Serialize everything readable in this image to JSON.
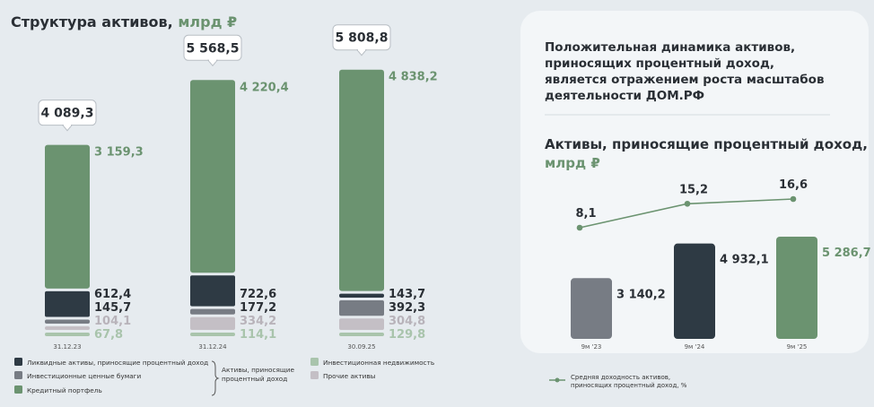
{
  "left_chart": {
    "title": "Структура активов,",
    "unit": "млрд ₽"
  },
  "legend_left": {
    "items": [
      {
        "label": "Ликвидные активы, приносящие процентный доход",
        "color": "#2e3a44"
      },
      {
        "label": "Инвестиционные ценные бумаги",
        "color": "#777c84"
      },
      {
        "label": "Кредитный портфель",
        "color": "#6b9370"
      },
      {
        "label": "Инвестиционная недвижимость",
        "color": "#a9c4ac"
      },
      {
        "label": "Прочие активы",
        "color": "#c4bfc5"
      }
    ],
    "brace_label": "Активы, приносящие процентный доход"
  },
  "right_panel": {
    "headline": "Положительная динамика активов, приносящих процентный доход, является отражением роста масштабов деятельности ДОМ.РФ",
    "subtitle": "Активы, приносящие процентный доход,",
    "unit": "млрд ₽",
    "legend_line": "Средняя доходность активов, приносящих процентный доход, %"
  },
  "colors": {
    "dark": "#2e3a44",
    "grey": "#777c84",
    "green": "#6b9370",
    "light_green": "#a9c4ac",
    "light_grey": "#c4bfc5",
    "title_green": "#6b9370"
  },
  "chart_data": [
    {
      "type": "bar",
      "stacked": true,
      "title": "Структура активов, млрд ₽",
      "categories": [
        "31.12.23",
        "31.12.24",
        "30.09.25"
      ],
      "totals": [
        4089.3,
        5568.5,
        5808.8
      ],
      "totals_labels": [
        "4 089,3",
        "5 568,5",
        "5 808,8"
      ],
      "series": [
        {
          "name": "Инвестиционная недвижимость",
          "values": [
            67.8,
            114.1,
            129.8
          ],
          "labels": [
            "67,8",
            "114,1",
            "129,8"
          ]
        },
        {
          "name": "Прочие активы",
          "values": [
            104.1,
            334.2,
            304.8
          ],
          "labels": [
            "104,1",
            "334,2",
            "304,8"
          ]
        },
        {
          "name": "Инвестиционные ценные бумаги",
          "values": [
            145.7,
            177.2,
            392.3
          ],
          "labels": [
            "145,7",
            "177,2",
            "392,3"
          ]
        },
        {
          "name": "Ликвидные активы, приносящие процентный доход",
          "values": [
            612.4,
            722.6,
            143.7
          ],
          "labels": [
            "612,4",
            "722,6",
            "143,7"
          ]
        },
        {
          "name": "Кредитный портфель",
          "values": [
            3159.3,
            4220.4,
            4838.2
          ],
          "labels": [
            "3 159,3",
            "4 220,4",
            "4 838,2"
          ]
        }
      ]
    },
    {
      "type": "bar",
      "title": "Активы, приносящие процентный доход, млрд ₽",
      "categories": [
        "9м '23",
        "9м '24",
        "9м '25"
      ],
      "values": [
        3140.2,
        4932.1,
        5286.7
      ],
      "labels": [
        "3 140,2",
        "4 932,1",
        "5 286,7"
      ],
      "line": {
        "name": "Средняя доходность активов, приносящих процентный доход, %",
        "values": [
          8.1,
          15.2,
          16.6
        ],
        "labels": [
          "8,1",
          "15,2",
          "16,6"
        ]
      }
    }
  ]
}
